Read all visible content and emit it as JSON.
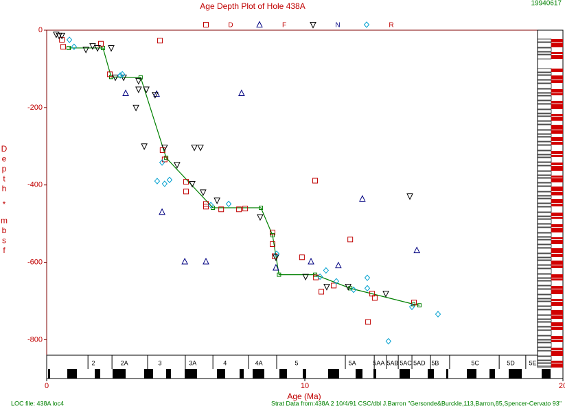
{
  "chart_data": {
    "type": "scatter",
    "title": "Age Depth Plot of Hole 438A",
    "date_stamp": "19940617",
    "x_label": "Age (Ma)",
    "y_label": "Depth * mbsf",
    "footer_left": "LOC file: 438A loc4",
    "footer_right": "Strat Data from:438A 2 10/4/91 CSC/dbl J.Barron \"Gersonde&Burckle,113,Barron,85,Spencer-Cervato 93\"",
    "xlim": [
      0,
      20
    ],
    "xticks": [
      0,
      10,
      20
    ],
    "ylim": [
      -840,
      0
    ],
    "yticks": [
      0,
      -200,
      -400,
      -600,
      -800
    ],
    "loc_line": {
      "color": "#008000",
      "x": [
        0.85,
        2.18,
        2.5,
        3.64,
        4.63,
        6.44,
        8.3,
        8.75,
        9.0,
        10.4,
        11.76,
        14.2,
        14.44
      ],
      "y": [
        -46,
        -46,
        -121,
        -122,
        -330,
        -459,
        -459,
        -530,
        -632,
        -632,
        -667,
        -708,
        -711
      ]
    },
    "series": [
      {
        "name": "D",
        "marker": "square",
        "color": "#c00000",
        "x": [
          0.59,
          0.64,
          2.1,
          2.45,
          4.39,
          4.49,
          4.57,
          5.4,
          5.4,
          6.17,
          6.17,
          6.76,
          7.45,
          7.69,
          8.75,
          8.75,
          8.83,
          9.89,
          10.4,
          10.43,
          10.64,
          11.12,
          11.76,
          12.45,
          12.61,
          12.71,
          14.23
        ],
        "y": [
          -25,
          -43,
          -35,
          -114,
          -27,
          -310,
          -334,
          -392,
          -417,
          -449,
          -456,
          -463,
          -463,
          -461,
          -523,
          -553,
          -584,
          -587,
          -389,
          -639,
          -676,
          -660,
          -541,
          -754,
          -681,
          -692,
          -704
        ]
      },
      {
        "name": "F",
        "marker": "triangle",
        "color": "#000080",
        "x": [
          3.06,
          4.26,
          7.55,
          4.47,
          5.35,
          6.17,
          8.88,
          10.24,
          11.3,
          12.23,
          14.34
        ],
        "y": [
          -163,
          -165,
          -163,
          -470,
          -598,
          -598,
          -614,
          -598,
          -608,
          -436,
          -569
        ]
      },
      {
        "name": "N",
        "marker": "inverted-triangle",
        "color": "#000000",
        "x": [
          0.37,
          0.48,
          0.59,
          1.52,
          1.78,
          1.97,
          2.5,
          2.66,
          2.98,
          3.56,
          3.56,
          3.86,
          3.46,
          4.2,
          3.78,
          4.57,
          5.72,
          5.96,
          5.05,
          5.64,
          6.06,
          6.6,
          8.27,
          8.88,
          10.03,
          10.85,
          11.68,
          13.14,
          14.07
        ],
        "y": [
          -11,
          -14,
          -14,
          -50,
          -41,
          -46,
          -46,
          -122,
          -122,
          -131,
          -153,
          -153,
          -200,
          -167,
          -300,
          -303,
          -303,
          -303,
          -348,
          -397,
          -419,
          -440,
          -483,
          -587,
          -637,
          -663,
          -663,
          -681,
          -429
        ]
      },
      {
        "name": "R",
        "marker": "diamond",
        "color": "#00a0d0",
        "x": [
          0.88,
          1.06,
          2.85,
          2.93,
          4.28,
          4.47,
          4.57,
          4.76,
          6.36,
          7.05,
          8.91,
          10.59,
          10.82,
          11.22,
          11.89,
          12.42,
          12.42,
          14.15,
          15.16,
          13.24
        ],
        "y": [
          -25,
          -43,
          -117,
          -114,
          -390,
          -342,
          -397,
          -387,
          -452,
          -449,
          -578,
          -637,
          -621,
          -649,
          -671,
          -640,
          -667,
          -715,
          -734,
          -804
        ]
      }
    ],
    "chrons": {
      "labels": [
        "2",
        "2A",
        "3",
        "3A",
        "4",
        "4A",
        "5",
        "5A",
        "5AA",
        "5AB",
        "5AC",
        "5AD",
        "5B",
        "5C",
        "5D",
        "5E"
      ],
      "label_ages": [
        1.81,
        3.01,
        4.39,
        5.66,
        6.91,
        8.22,
        9.68,
        11.84,
        12.87,
        13.4,
        13.91,
        14.44,
        15.05,
        16.6,
        17.98,
        18.83
      ],
      "boundaries": [
        1.6,
        2.53,
        3.91,
        5.37,
        6.44,
        7.82,
        8.91,
        11.57,
        12.69,
        13.16,
        13.62,
        14.15,
        14.87,
        15.61,
        17.53,
        18.56
      ]
    }
  }
}
